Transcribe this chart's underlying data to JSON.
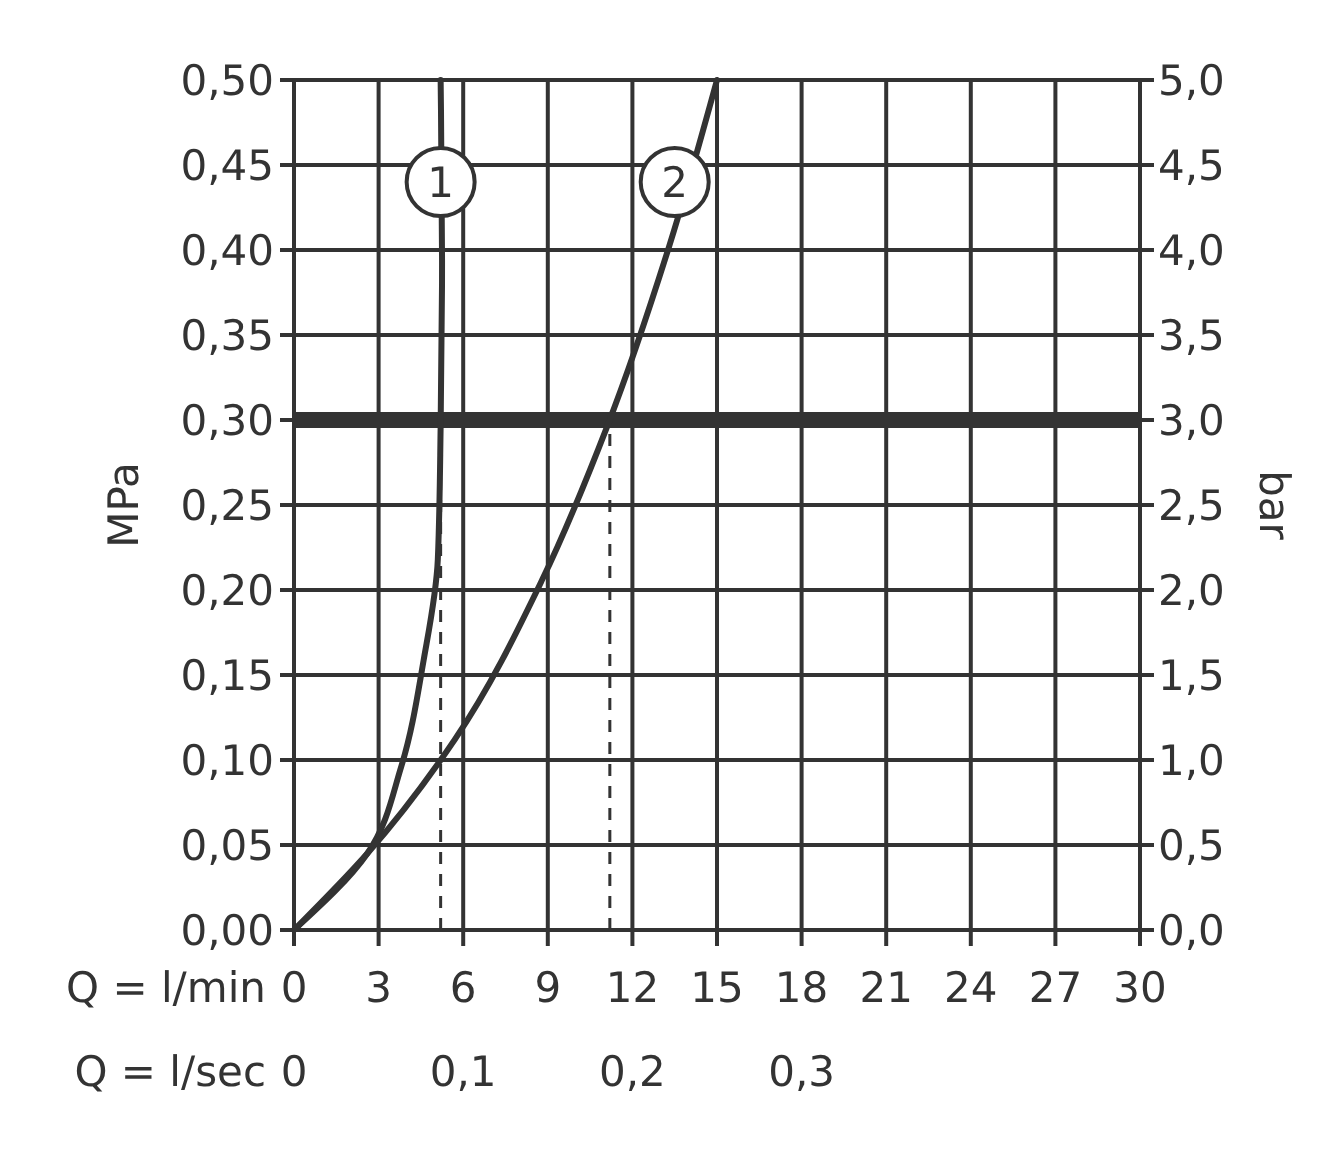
{
  "chart_data": {
    "type": "line",
    "xlabel": "Q = l/min",
    "x2label": "Q = l/sec",
    "ylabel": "MPa",
    "y2label": "bar",
    "xlim": [
      0,
      30
    ],
    "xticks": [
      0,
      3,
      6,
      9,
      12,
      15,
      18,
      21,
      24,
      27,
      30
    ],
    "x2lim": [
      0,
      0.5
    ],
    "x2ticks": [
      0,
      {
        "value": 0.1,
        "label": "0,1"
      },
      {
        "value": 0.2,
        "label": "0,2"
      },
      {
        "value": 0.3,
        "label": "0,3"
      }
    ],
    "ylim": [
      0,
      0.5
    ],
    "yticks": [
      {
        "value": 0,
        "label": "0,00"
      },
      {
        "value": 0.05,
        "label": "0,05"
      },
      {
        "value": 0.1,
        "label": "0,10"
      },
      {
        "value": 0.15,
        "label": "0,15"
      },
      {
        "value": 0.2,
        "label": "0,20"
      },
      {
        "value": 0.25,
        "label": "0,25"
      },
      {
        "value": 0.3,
        "label": "0,30"
      },
      {
        "value": 0.35,
        "label": "0,35"
      },
      {
        "value": 0.4,
        "label": "0,40"
      },
      {
        "value": 0.45,
        "label": "0,45"
      },
      {
        "value": 0.5,
        "label": "0,50"
      }
    ],
    "y2lim": [
      0,
      5
    ],
    "y2ticks": [
      {
        "value": 0,
        "label": "0,0"
      },
      {
        "value": 0.5,
        "label": "0,5"
      },
      {
        "value": 1,
        "label": "1,0"
      },
      {
        "value": 1.5,
        "label": "1,5"
      },
      {
        "value": 2,
        "label": "2,0"
      },
      {
        "value": 2.5,
        "label": "2,5"
      },
      {
        "value": 3,
        "label": "3,0"
      },
      {
        "value": 3.5,
        "label": "3,5"
      },
      {
        "value": 4,
        "label": "4,0"
      },
      {
        "value": 4.5,
        "label": "4,5"
      },
      {
        "value": 5,
        "label": "5,0"
      }
    ],
    "grid": true,
    "marker": "none",
    "line_style": "solid",
    "series": [
      {
        "color": "#333333",
        "x": [
          0,
          2.6,
          3.8,
          4.6,
          5.1,
          5.2,
          5.25,
          5.2
        ],
        "values": [
          0,
          0.045,
          0.096,
          0.159,
          0.218,
          0.296,
          0.394,
          0.5
        ]
      },
      {
        "color": "#333333",
        "x": [
          0,
          2.6,
          5.7,
          8.8,
          11.1,
          13.3,
          15
        ],
        "values": [
          0,
          0.045,
          0.112,
          0.206,
          0.296,
          0.402,
          0.5
        ]
      }
    ],
    "ref_lines": [
      {
        "axis": "y",
        "value": 0.3,
        "color": "#333333",
        "line_style": "solid"
      },
      {
        "axis": "x",
        "value": 5.2,
        "color": "#333333",
        "line_style": "dashed"
      },
      {
        "axis": "x",
        "value": 11.2,
        "color": "#333333",
        "line_style": "dashed"
      }
    ],
    "annotations": [
      {
        "text": "1",
        "x": 5.2,
        "y": 0.44
      },
      {
        "text": "2",
        "x": 13.5,
        "y": 0.44
      }
    ]
  }
}
